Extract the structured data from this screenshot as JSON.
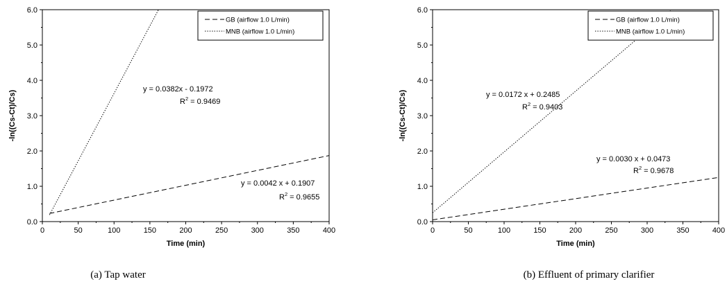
{
  "chart_data": [
    {
      "type": "line",
      "caption": "(a) Tap water",
      "xlabel": "Time (min)",
      "ylabel": "-ln((Cs-Ct)/Cs)",
      "xlim": [
        0,
        400
      ],
      "ylim": [
        0,
        6
      ],
      "x_ticks": [
        "0",
        "50",
        "100",
        "150",
        "200",
        "250",
        "300",
        "350",
        "400"
      ],
      "y_ticks": [
        "0.0",
        "1.0",
        "2.0",
        "3.0",
        "4.0",
        "5.0",
        "6.0"
      ],
      "grid": false,
      "legend_position": "top-right",
      "series": [
        {
          "name": "GB (airflow 1.0 L/min)",
          "style": "dashed",
          "slope": 0.0042,
          "intercept": 0.1907,
          "x": [
            10,
            400
          ],
          "y": [
            0.23,
            1.87
          ],
          "equation": "y = 0.0042 x + 0.1907",
          "r2_prefix": "R",
          "r2_sup": "2",
          "r2_value": " = 0.9655"
        },
        {
          "name": "MNB (airflow 1.0 L/min)",
          "style": "dotted",
          "slope": 0.0382,
          "intercept": -0.1972,
          "x": [
            10,
            162
          ],
          "y": [
            0.19,
            6.0
          ],
          "equation": "y = 0.0382x - 0.1972",
          "r2_prefix": "R",
          "r2_sup": "2",
          "r2_value": " = 0.9469"
        }
      ]
    },
    {
      "type": "line",
      "caption": "(b) Effluent of primary clarifier",
      "xlabel": "Time (min)",
      "ylabel": "-ln((Cs-Ct)/Cs)",
      "xlim": [
        0,
        400
      ],
      "ylim": [
        0,
        6
      ],
      "x_ticks": [
        "0",
        "50",
        "100",
        "150",
        "200",
        "250",
        "300",
        "350",
        "400"
      ],
      "y_ticks": [
        "0.0",
        "1.0",
        "2.0",
        "3.0",
        "4.0",
        "5.0",
        "6.0"
      ],
      "grid": false,
      "legend_position": "top-right",
      "series": [
        {
          "name": "GB (airflow 1.0 L/min)",
          "style": "dashed",
          "slope": 0.003,
          "intercept": 0.0473,
          "x": [
            0,
            400
          ],
          "y": [
            0.05,
            1.25
          ],
          "equation": "y = 0.0030 x + 0.0473",
          "r2_prefix": "R",
          "r2_sup": "2",
          "r2_value": " = 0.9678"
        },
        {
          "name": "MNB (airflow 1.0 L/min)",
          "style": "dotted",
          "slope": 0.0172,
          "intercept": 0.2485,
          "x": [
            0,
            334
          ],
          "y": [
            0.25,
            6.0
          ],
          "equation": "y = 0.0172 x + 0.2485",
          "r2_prefix": "R",
          "r2_sup": "2",
          "r2_value": " = 0.9403"
        }
      ]
    }
  ]
}
